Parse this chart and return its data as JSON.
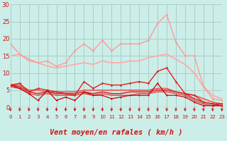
{
  "background_color": "#cceee8",
  "grid_color": "#aacccc",
  "xlabel": "Vent moyen/en rafales ( km/h )",
  "xlim": [
    0,
    23
  ],
  "ylim": [
    0,
    30
  ],
  "yticks": [
    0,
    5,
    10,
    15,
    20,
    25,
    30
  ],
  "xticks": [
    0,
    1,
    2,
    3,
    4,
    5,
    6,
    7,
    8,
    9,
    10,
    11,
    12,
    13,
    14,
    15,
    16,
    17,
    18,
    19,
    20,
    21,
    22,
    23
  ],
  "x": [
    0,
    1,
    2,
    3,
    4,
    5,
    6,
    7,
    8,
    9,
    10,
    11,
    12,
    13,
    14,
    15,
    16,
    17,
    18,
    19,
    20,
    21,
    22,
    23
  ],
  "series": [
    {
      "y": [
        18.5,
        15.5,
        14,
        13,
        13.5,
        12,
        13,
        16.5,
        18.5,
        16.5,
        19.5,
        16.5,
        18.5,
        18.5,
        18.5,
        19.5,
        24.5,
        27,
        19,
        15,
        15,
        6,
        2.5,
        2
      ],
      "color": "#ff9999",
      "lw": 1.0,
      "marker": "D",
      "ms": 1.8
    },
    {
      "y": [
        15,
        15.5,
        13.5,
        13,
        12,
        11.5,
        12,
        12.5,
        13,
        12.5,
        13.5,
        13,
        13,
        13.5,
        13.5,
        14.5,
        15,
        15.5,
        14,
        12.5,
        10,
        6,
        3.5,
        2.5
      ],
      "color": "#ffaaaa",
      "lw": 1.3,
      "marker": null,
      "ms": 0
    },
    {
      "y": [
        6.5,
        7,
        4.5,
        5.5,
        5,
        4.5,
        4,
        3.5,
        7.5,
        5.5,
        7,
        6.5,
        6.5,
        7,
        7.5,
        7,
        10.5,
        11.5,
        7.5,
        4,
        3.5,
        1.5,
        1,
        1
      ],
      "color": "#dd2222",
      "lw": 1.0,
      "marker": "D",
      "ms": 1.8
    },
    {
      "y": [
        6.5,
        6.5,
        5,
        5,
        4.5,
        4.5,
        4.5,
        4.5,
        5,
        5,
        5,
        5,
        5,
        5,
        5,
        5,
        5.5,
        5.5,
        4.5,
        4,
        3.5,
        2.5,
        1.5,
        1
      ],
      "color": "#ee5555",
      "lw": 1.2,
      "marker": null,
      "ms": 0
    },
    {
      "y": [
        6.5,
        5.5,
        4,
        2,
        5,
        2,
        3,
        2,
        4.5,
        3.5,
        3.5,
        2.5,
        3,
        3.5,
        3.5,
        3.5,
        7,
        3.5,
        3.5,
        3,
        1.5,
        0.5,
        0.5,
        0.5
      ],
      "color": "#cc0000",
      "lw": 0.9,
      "marker": "D",
      "ms": 1.5
    },
    {
      "y": [
        6.5,
        6,
        4.5,
        4,
        4.5,
        4,
        4,
        4,
        4.5,
        4,
        4.5,
        4,
        4,
        4.5,
        4.5,
        4.5,
        5,
        5,
        4.5,
        4,
        2.5,
        1.5,
        1,
        0.5
      ],
      "color": "#cc3333",
      "lw": 1.2,
      "marker": null,
      "ms": 0
    },
    {
      "y": [
        6,
        5.5,
        4,
        3.5,
        4,
        3.5,
        3.5,
        3.5,
        4,
        3.5,
        4,
        3.5,
        3.5,
        3.5,
        4,
        4,
        4.5,
        4.5,
        4,
        3.5,
        2,
        1,
        0.5,
        0.5
      ],
      "color": "#dd4444",
      "lw": 1.0,
      "marker": null,
      "ms": 0
    }
  ],
  "arrow_color": "#cc1111",
  "tick_color": "#cc1111",
  "label_color": "#cc1111",
  "xlabel_fontsize": 7.5,
  "ytick_fontsize": 6,
  "xtick_fontsize": 5
}
